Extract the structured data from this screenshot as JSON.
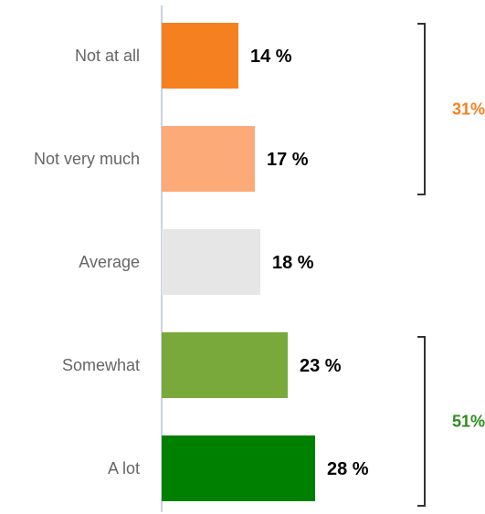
{
  "chart_data": {
    "type": "bar",
    "orientation": "horizontal",
    "categories": [
      "Not at all",
      "Not very much",
      "Average",
      "Somewhat",
      "A lot"
    ],
    "values": [
      14,
      17,
      18,
      23,
      28
    ],
    "value_labels": [
      "14 %",
      "17 %",
      "18 %",
      "23 %",
      "28 %"
    ],
    "bar_colors": [
      "#f5801f",
      "#fcaa77",
      "#e6e6e6",
      "#79a93a",
      "#008000"
    ],
    "title": "",
    "xlabel": "",
    "ylabel": "",
    "xlim": [
      0,
      28
    ],
    "grid": false,
    "groups": [
      {
        "label": "31%",
        "color": "#f5801f",
        "categories": [
          "Not at all",
          "Not very much"
        ]
      },
      {
        "label": "51%",
        "color": "#2c8c1d",
        "categories": [
          "Somewhat",
          "A lot"
        ]
      }
    ]
  }
}
